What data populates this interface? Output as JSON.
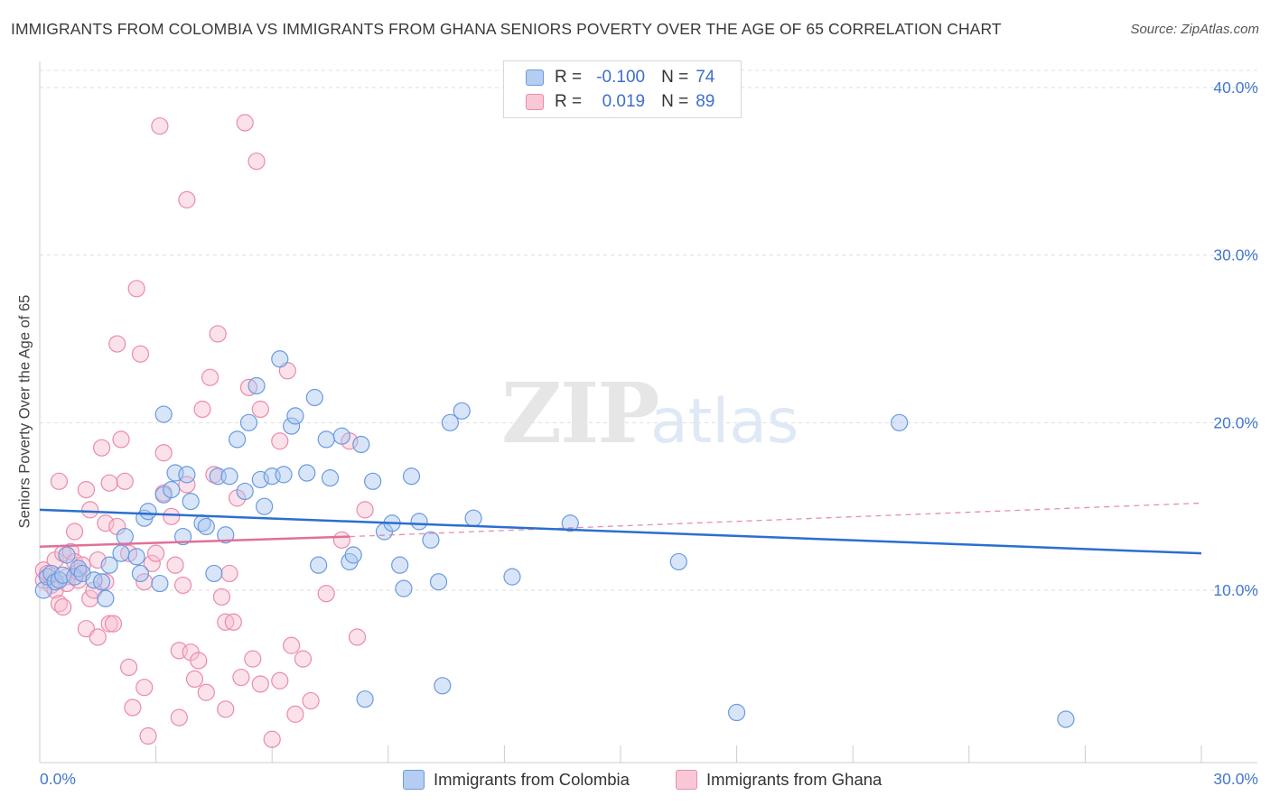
{
  "title": "IMMIGRANTS FROM COLOMBIA VS IMMIGRANTS FROM GHANA SENIORS POVERTY OVER THE AGE OF 65 CORRELATION CHART",
  "source": "Source: ZipAtlas.com",
  "watermark": {
    "zip": "ZIP",
    "atlas": "atlas"
  },
  "legend": {
    "colombia": {
      "r_label": "R =",
      "r_value": "-0.100",
      "n_label": "N =",
      "n_value": "74"
    },
    "ghana": {
      "r_label": "R =",
      "r_value": "0.019",
      "n_label": "N =",
      "n_value": "89"
    }
  },
  "bottom_legend": {
    "colombia": "Immigrants from Colombia",
    "ghana": "Immigrants from Ghana"
  },
  "colors": {
    "colombia_fill": "#a9c6ef",
    "colombia_stroke": "#6a9ae0",
    "colombia_line": "#2a6fd0",
    "ghana_fill": "#f6bfd0",
    "ghana_stroke": "#ec8aaa",
    "ghana_line": "#e0709a",
    "tick_text": "#4477cc"
  },
  "chart_data": {
    "type": "scatter",
    "title": "IMMIGRANTS FROM COLOMBIA VS IMMIGRANTS FROM GHANA SENIORS POVERTY OVER THE AGE OF 65 CORRELATION CHART",
    "xlabel": "",
    "ylabel": "Seniors Poverty Over the Age of 65",
    "xlim": [
      0,
      30
    ],
    "ylim": [
      0,
      40
    ],
    "x_tick_labels": [
      "0.0%",
      "30.0%"
    ],
    "y_ticks": [
      10,
      20,
      30,
      40
    ],
    "y_tick_labels": [
      "10.0%",
      "20.0%",
      "30.0%",
      "40.0%"
    ],
    "grid": true,
    "series": [
      {
        "name": "Immigrants from Colombia",
        "r": -0.1,
        "n": 74,
        "trend": {
          "x": [
            0,
            30
          ],
          "y": [
            14.8,
            12.2
          ]
        },
        "points": [
          [
            0.1,
            10.0
          ],
          [
            0.2,
            10.8
          ],
          [
            0.3,
            11.0
          ],
          [
            0.4,
            10.5
          ],
          [
            0.5,
            10.6
          ],
          [
            0.6,
            10.9
          ],
          [
            0.7,
            12.1
          ],
          [
            0.9,
            10.8
          ],
          [
            1.0,
            11.3
          ],
          [
            1.1,
            11.0
          ],
          [
            1.4,
            10.6
          ],
          [
            1.6,
            10.5
          ],
          [
            1.7,
            9.5
          ],
          [
            1.8,
            11.5
          ],
          [
            2.1,
            12.2
          ],
          [
            2.2,
            13.2
          ],
          [
            2.5,
            12.0
          ],
          [
            2.6,
            11.0
          ],
          [
            2.7,
            14.3
          ],
          [
            2.8,
            14.7
          ],
          [
            3.1,
            10.4
          ],
          [
            3.2,
            20.5
          ],
          [
            3.2,
            15.7
          ],
          [
            3.4,
            16.0
          ],
          [
            3.5,
            17.0
          ],
          [
            3.8,
            16.9
          ],
          [
            3.7,
            13.2
          ],
          [
            3.9,
            15.3
          ],
          [
            4.2,
            14.0
          ],
          [
            4.3,
            13.8
          ],
          [
            4.5,
            11.0
          ],
          [
            4.6,
            16.8
          ],
          [
            4.8,
            13.3
          ],
          [
            4.9,
            16.8
          ],
          [
            5.1,
            19.0
          ],
          [
            5.3,
            15.9
          ],
          [
            5.4,
            20.0
          ],
          [
            5.6,
            22.2
          ],
          [
            5.7,
            16.6
          ],
          [
            5.8,
            15.0
          ],
          [
            6.0,
            16.8
          ],
          [
            6.2,
            23.8
          ],
          [
            6.3,
            16.9
          ],
          [
            6.5,
            19.8
          ],
          [
            6.6,
            20.4
          ],
          [
            6.9,
            17.0
          ],
          [
            7.1,
            21.5
          ],
          [
            7.2,
            11.5
          ],
          [
            7.4,
            19.0
          ],
          [
            7.5,
            16.7
          ],
          [
            7.8,
            19.2
          ],
          [
            8.0,
            11.7
          ],
          [
            8.1,
            12.1
          ],
          [
            8.3,
            18.7
          ],
          [
            8.4,
            3.5
          ],
          [
            8.6,
            16.5
          ],
          [
            8.9,
            13.5
          ],
          [
            9.1,
            14.0
          ],
          [
            9.3,
            11.5
          ],
          [
            9.4,
            10.1
          ],
          [
            9.6,
            16.8
          ],
          [
            9.8,
            14.1
          ],
          [
            10.1,
            13.0
          ],
          [
            10.3,
            10.5
          ],
          [
            10.4,
            4.3
          ],
          [
            10.6,
            20.0
          ],
          [
            10.9,
            20.7
          ],
          [
            11.2,
            14.3
          ],
          [
            12.2,
            10.8
          ],
          [
            13.7,
            14.0
          ],
          [
            16.5,
            11.7
          ],
          [
            18.0,
            2.7
          ],
          [
            22.2,
            20.0
          ],
          [
            26.5,
            2.3
          ]
        ]
      },
      {
        "name": "Immigrants from Ghana",
        "r": 0.019,
        "n": 89,
        "trend": {
          "x": [
            0,
            8
          ],
          "y": [
            12.6,
            13.2
          ]
        },
        "trend_dashed": {
          "x": [
            8,
            30
          ],
          "y": [
            13.2,
            15.2
          ]
        },
        "points": [
          [
            0.1,
            10.6
          ],
          [
            0.1,
            11.2
          ],
          [
            0.2,
            11.0
          ],
          [
            0.3,
            10.3
          ],
          [
            0.4,
            10.0
          ],
          [
            0.4,
            11.8
          ],
          [
            0.5,
            16.5
          ],
          [
            0.5,
            9.2
          ],
          [
            0.6,
            12.2
          ],
          [
            0.6,
            9.0
          ],
          [
            0.7,
            10.8
          ],
          [
            0.7,
            10.4
          ],
          [
            0.8,
            12.3
          ],
          [
            0.9,
            13.5
          ],
          [
            0.9,
            11.7
          ],
          [
            1.0,
            11.1
          ],
          [
            1.0,
            10.6
          ],
          [
            1.1,
            11.5
          ],
          [
            1.2,
            7.7
          ],
          [
            1.2,
            16.0
          ],
          [
            1.3,
            14.8
          ],
          [
            1.3,
            9.5
          ],
          [
            1.4,
            10.0
          ],
          [
            1.5,
            11.8
          ],
          [
            1.5,
            7.2
          ],
          [
            1.6,
            18.5
          ],
          [
            1.7,
            14.0
          ],
          [
            1.7,
            10.5
          ],
          [
            1.8,
            8.0
          ],
          [
            1.8,
            16.4
          ],
          [
            1.9,
            8.0
          ],
          [
            2.0,
            13.8
          ],
          [
            2.0,
            24.7
          ],
          [
            2.1,
            19.0
          ],
          [
            2.2,
            16.5
          ],
          [
            2.3,
            12.2
          ],
          [
            2.3,
            5.4
          ],
          [
            2.4,
            3.0
          ],
          [
            2.5,
            28.0
          ],
          [
            2.6,
            24.1
          ],
          [
            2.7,
            4.2
          ],
          [
            2.7,
            10.5
          ],
          [
            2.8,
            1.3
          ],
          [
            2.9,
            11.6
          ],
          [
            3.0,
            12.2
          ],
          [
            3.1,
            37.7
          ],
          [
            3.2,
            18.2
          ],
          [
            3.2,
            15.8
          ],
          [
            3.4,
            14.4
          ],
          [
            3.5,
            11.5
          ],
          [
            3.6,
            6.4
          ],
          [
            3.6,
            2.4
          ],
          [
            3.7,
            10.3
          ],
          [
            3.8,
            33.3
          ],
          [
            3.8,
            16.3
          ],
          [
            3.9,
            6.3
          ],
          [
            4.0,
            4.7
          ],
          [
            4.1,
            5.8
          ],
          [
            4.2,
            20.8
          ],
          [
            4.3,
            3.9
          ],
          [
            4.4,
            22.7
          ],
          [
            4.5,
            16.9
          ],
          [
            4.6,
            25.3
          ],
          [
            4.7,
            9.6
          ],
          [
            4.8,
            8.1
          ],
          [
            4.8,
            2.9
          ],
          [
            4.9,
            11.0
          ],
          [
            5.0,
            8.1
          ],
          [
            5.1,
            15.5
          ],
          [
            5.2,
            4.8
          ],
          [
            5.3,
            37.9
          ],
          [
            5.4,
            22.1
          ],
          [
            5.5,
            5.9
          ],
          [
            5.6,
            35.6
          ],
          [
            5.7,
            20.8
          ],
          [
            5.7,
            4.4
          ],
          [
            6.0,
            1.1
          ],
          [
            6.2,
            18.9
          ],
          [
            6.2,
            4.6
          ],
          [
            6.4,
            23.1
          ],
          [
            6.5,
            6.7
          ],
          [
            6.6,
            2.6
          ],
          [
            6.8,
            5.9
          ],
          [
            7.0,
            3.4
          ],
          [
            7.4,
            9.8
          ],
          [
            7.8,
            13.0
          ],
          [
            8.0,
            18.9
          ],
          [
            8.2,
            7.2
          ],
          [
            8.4,
            14.8
          ]
        ]
      }
    ]
  }
}
